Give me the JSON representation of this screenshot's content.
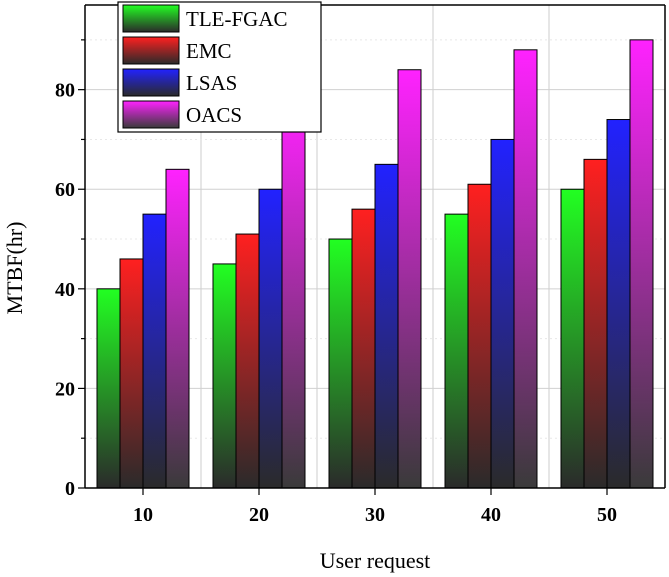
{
  "chart_data": {
    "type": "bar",
    "title": "",
    "xlabel": "User request",
    "ylabel": "MTBF(hr)",
    "categories": [
      "10",
      "20",
      "30",
      "40",
      "50"
    ],
    "ylim": [
      0,
      97
    ],
    "yticks": [
      0,
      20,
      40,
      60,
      80
    ],
    "grid": true,
    "legend_position": "top-left",
    "series": [
      {
        "name": "TLE-FGAC",
        "values": [
          40,
          45,
          50,
          55,
          60
        ],
        "color_top": "#22ff22",
        "color_bottom": "#2a2a2a"
      },
      {
        "name": "EMC",
        "values": [
          46,
          51,
          56,
          61,
          66
        ],
        "color_top": "#ff2020",
        "color_bottom": "#2a2a2a"
      },
      {
        "name": "LSAS",
        "values": [
          55,
          60,
          65,
          70,
          74
        ],
        "color_top": "#2222ff",
        "color_bottom": "#2a2a2a"
      },
      {
        "name": "OACS",
        "values": [
          64,
          77,
          84,
          88,
          90
        ],
        "color_top": "#ff22ff",
        "color_bottom": "#3a3a3a"
      }
    ]
  }
}
